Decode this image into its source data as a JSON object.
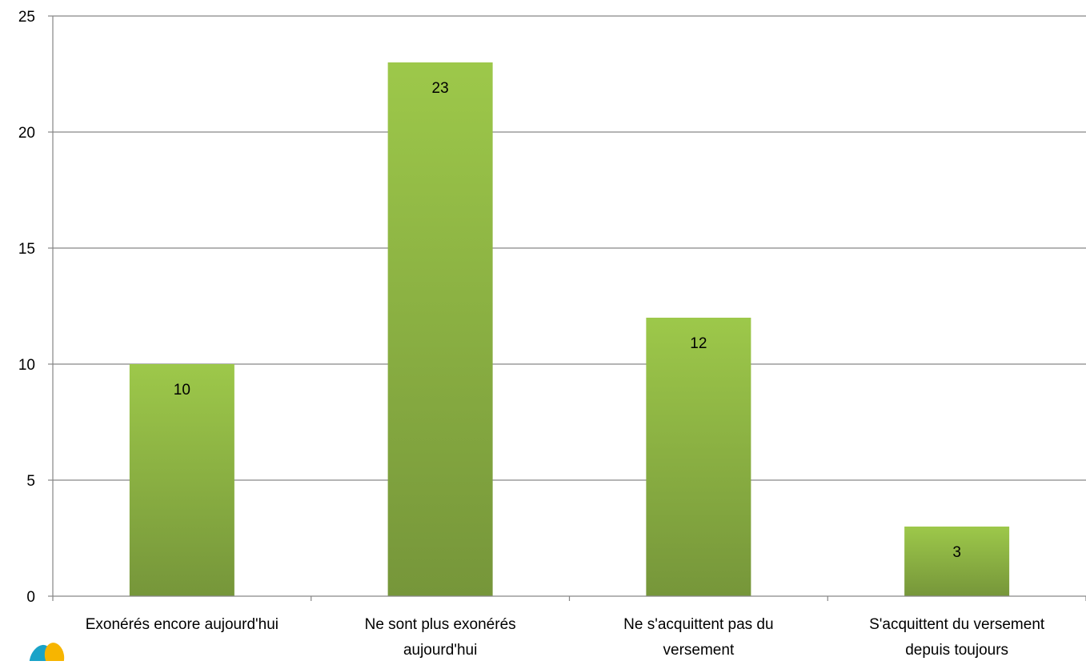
{
  "chart_data": {
    "type": "bar",
    "categories": [
      [
        "Exonérés encore aujourd'hui"
      ],
      [
        "Ne sont plus exonérés",
        "aujourd'hui"
      ],
      [
        "Ne s'acquittent pas du",
        "versement"
      ],
      [
        "S'acquittent du versement",
        "depuis toujours"
      ]
    ],
    "values": [
      10,
      23,
      12,
      3
    ],
    "data_labels": [
      "10",
      "23",
      "12",
      "3"
    ],
    "ylim": [
      0,
      25
    ],
    "yticks": [
      0,
      5,
      10,
      15,
      20,
      25
    ],
    "ytick_labels": [
      "0",
      "5",
      "10",
      "15",
      "20",
      "25"
    ],
    "grid": true,
    "legend": "none",
    "title": "",
    "xlabel": "",
    "ylabel": "",
    "colors": {
      "bar_top": "#9dc84a",
      "bar_bottom": "#76963a",
      "gridline": "#868686",
      "axis": "#868686",
      "logo_teal": "#1aa3c8",
      "logo_yellow": "#f7b500"
    }
  }
}
